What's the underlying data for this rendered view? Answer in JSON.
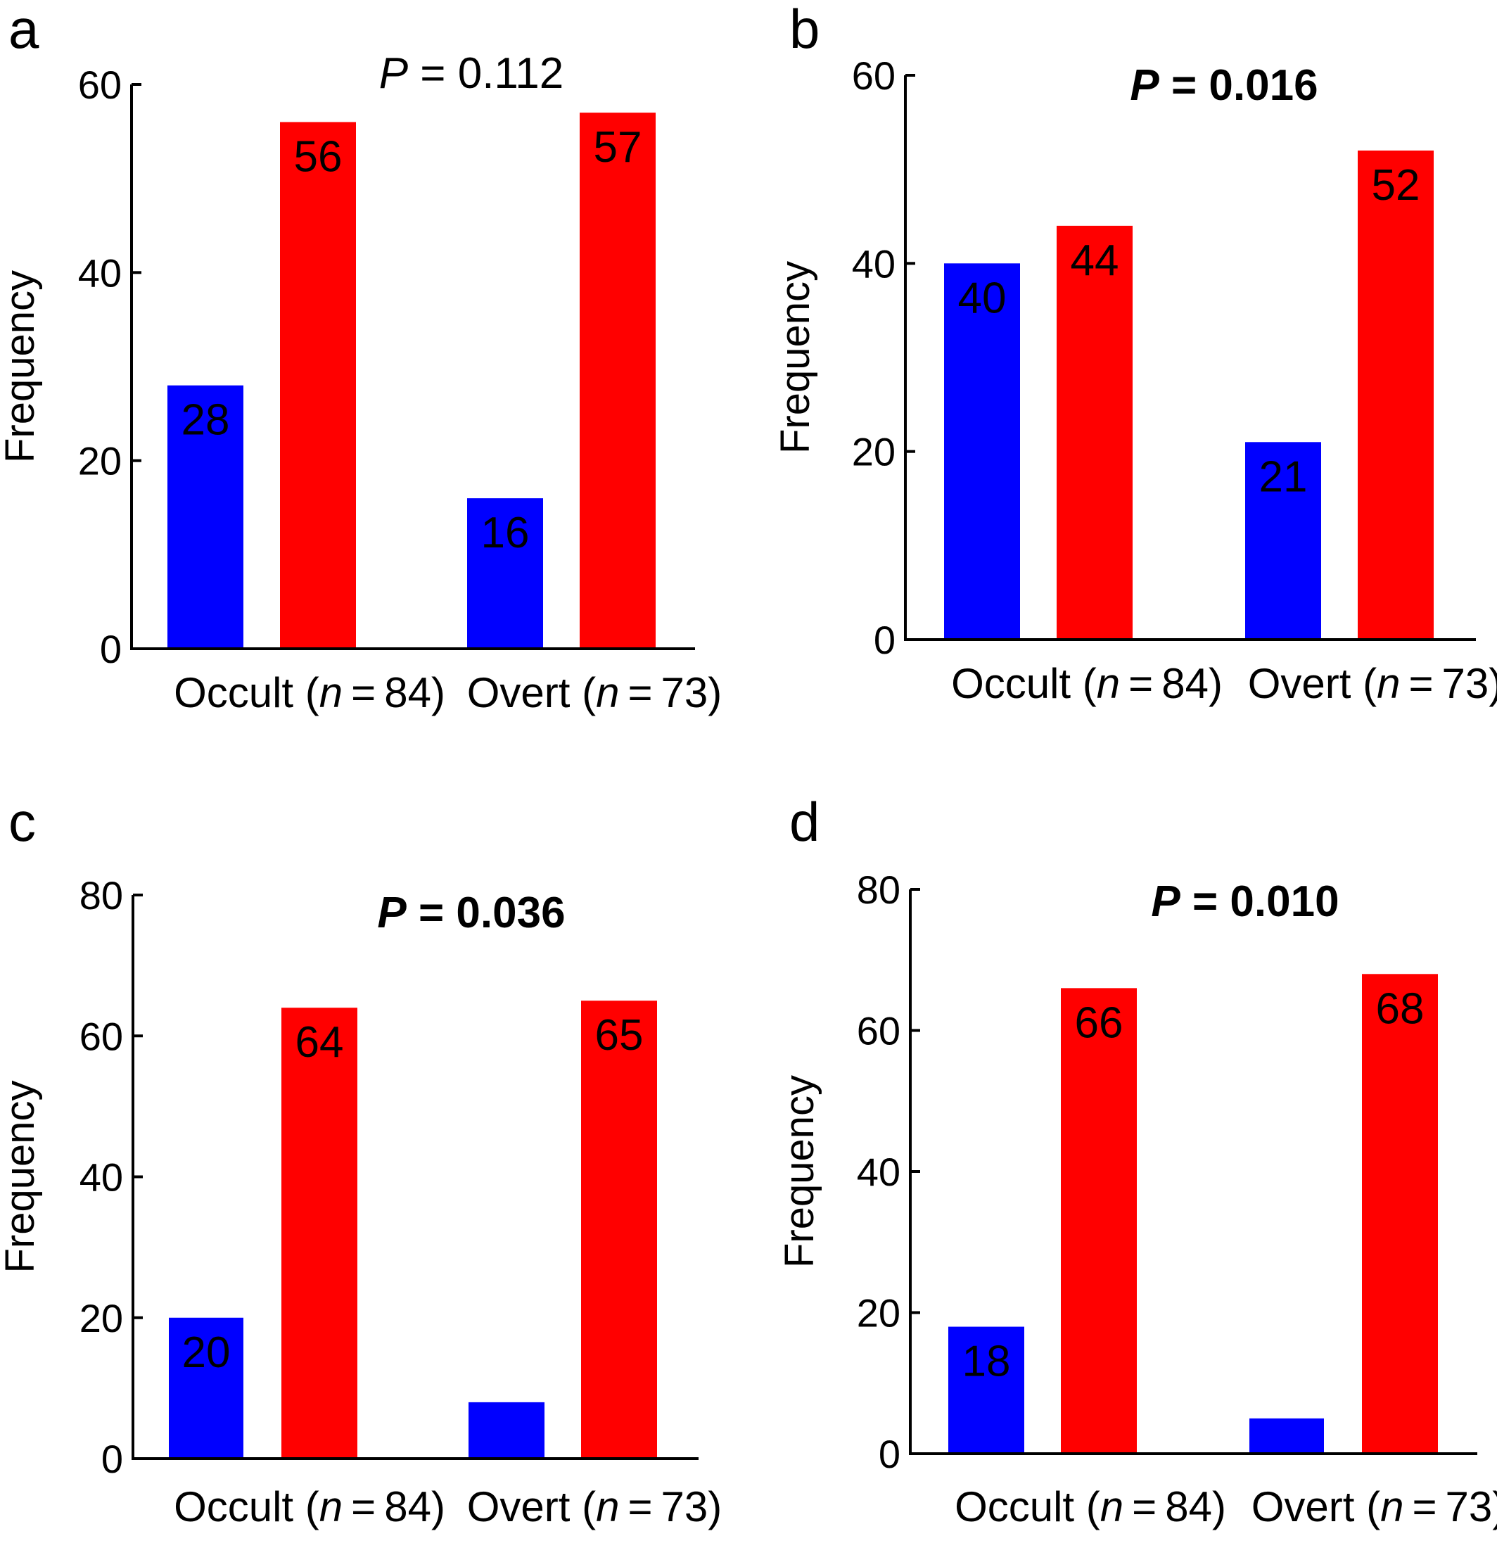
{
  "colors": {
    "group_1": "#0000ff",
    "group_2": "#ff0000"
  },
  "chart_data": [
    {
      "panel": "a",
      "type": "bar",
      "categories": [
        "Occult",
        "Overt"
      ],
      "category_n": [
        "84",
        "73"
      ],
      "series": [
        {
          "values": [
            28,
            16
          ]
        },
        {
          "values": [
            56,
            57
          ]
        }
      ],
      "bar_labels": [
        [
          "28",
          "16"
        ],
        [
          "56",
          "57"
        ]
      ],
      "annotation": {
        "label": "P",
        "value": "= 0.112",
        "bold": false
      },
      "ylabel": "Frequency",
      "ylim": [
        0,
        60
      ],
      "yticks": [
        0,
        20,
        40,
        60
      ]
    },
    {
      "panel": "b",
      "type": "bar",
      "categories": [
        "Occult",
        "Overt"
      ],
      "category_n": [
        "84",
        "73"
      ],
      "series": [
        {
          "values": [
            40,
            21
          ]
        },
        {
          "values": [
            44,
            52
          ]
        }
      ],
      "bar_labels": [
        [
          "40",
          "21"
        ],
        [
          "44",
          "52"
        ]
      ],
      "annotation": {
        "label": "P",
        "value": "= 0.016",
        "bold": true
      },
      "ylabel": "Frequency",
      "ylim": [
        0,
        60
      ],
      "yticks": [
        0,
        20,
        40,
        60
      ]
    },
    {
      "panel": "c",
      "type": "bar",
      "categories": [
        "Occult",
        "Overt"
      ],
      "category_n": [
        "84",
        "73"
      ],
      "series": [
        {
          "values": [
            20,
            8
          ]
        },
        {
          "values": [
            64,
            65
          ]
        }
      ],
      "bar_labels": [
        [
          "20",
          ""
        ],
        [
          "64",
          "65"
        ]
      ],
      "annotation": {
        "label": "P",
        "value": "= 0.036",
        "bold": true
      },
      "ylabel": "Frequency",
      "ylim": [
        0,
        80
      ],
      "yticks": [
        0,
        20,
        40,
        60,
        80
      ]
    },
    {
      "panel": "d",
      "type": "bar",
      "categories": [
        "Occult",
        "Overt"
      ],
      "category_n": [
        "84",
        "73"
      ],
      "series": [
        {
          "values": [
            18,
            5
          ]
        },
        {
          "values": [
            66,
            68
          ]
        }
      ],
      "bar_labels": [
        [
          "18",
          ""
        ],
        [
          "66",
          "68"
        ]
      ],
      "annotation": {
        "label": "P",
        "value": "= 0.010",
        "bold": true
      },
      "ylabel": "Frequency",
      "ylim": [
        0,
        80
      ],
      "yticks": [
        0,
        20,
        40,
        60,
        80
      ]
    }
  ]
}
